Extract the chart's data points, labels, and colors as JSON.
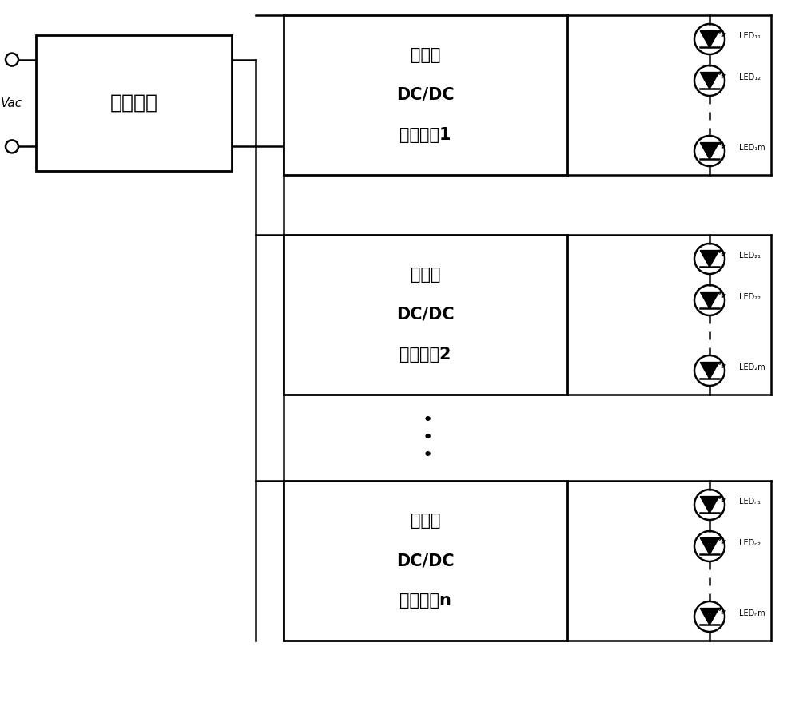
{
  "bg_color": "#ffffff",
  "fig_width": 10.0,
  "fig_height": 8.84,
  "vac_label": "Vac",
  "heng_ya_label": "恒压模块",
  "dcdc_labels": [
    [
      "非隔离",
      "DC/DC",
      "恒流电路1"
    ],
    [
      "非隔离",
      "DC/DC",
      "恒流电路2"
    ],
    [
      "非隔离",
      "DC/DC",
      "恒流电路n"
    ]
  ],
  "led_labels_1": [
    "LED₁₁",
    "LED₁₂",
    "LED₁m"
  ],
  "led_labels_2": [
    "LED₂₁",
    "LED₂₂",
    "LED₂m"
  ],
  "led_labels_n": [
    "LEDₙ₁",
    "LEDₙ₂",
    "LEDₙm"
  ]
}
